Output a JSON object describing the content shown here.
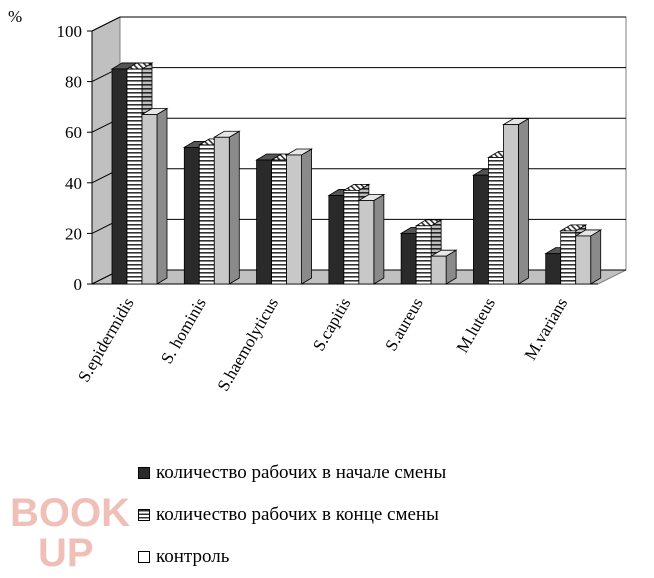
{
  "chart_data": {
    "type": "bar",
    "unit_label": "%",
    "categories": [
      "S.epidermidis",
      "S. hominis",
      "S.haemolyticus",
      "S.capitis",
      "S.aureus",
      "M.luteus",
      "M.varians"
    ],
    "series": [
      {
        "name": "количество рабочих в начале смены",
        "values": [
          85,
          54,
          49,
          35,
          20,
          43,
          12
        ],
        "color": "#2a2a2a",
        "pattern": "solid"
      },
      {
        "name": "количество рабочих в конце смены",
        "values": [
          85,
          55,
          49,
          37,
          23,
          50,
          21
        ],
        "color": "#ffffff",
        "pattern": "horizontal-stripes"
      },
      {
        "name": "контроль",
        "values": [
          67,
          58,
          51,
          33,
          11,
          63,
          19
        ],
        "color": "#c8c8c8",
        "pattern": "solid-light"
      }
    ],
    "ylim": [
      0,
      100
    ],
    "yticks": [
      "0",
      "20",
      "40",
      "60",
      "80",
      "100"
    ],
    "grid": true,
    "legend_position": "bottom"
  },
  "watermark": "BOOK UP"
}
